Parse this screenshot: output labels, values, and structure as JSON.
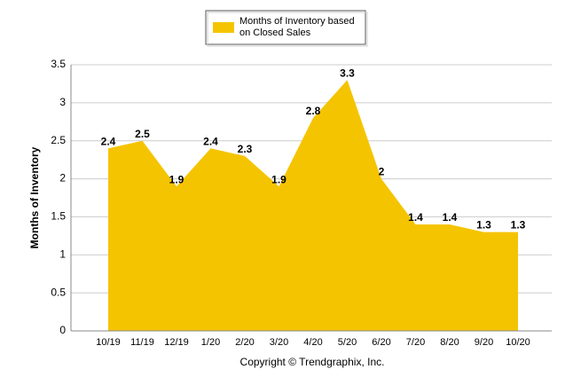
{
  "chart_data": {
    "type": "area",
    "categories": [
      "10/19",
      "11/19",
      "12/19",
      "1/20",
      "2/20",
      "3/20",
      "4/20",
      "5/20",
      "6/20",
      "7/20",
      "8/20",
      "9/20",
      "10/20"
    ],
    "series": [
      {
        "name": "Months of Inventory based on Closed Sales",
        "color": "#f5c400",
        "values": [
          2.4,
          2.5,
          1.9,
          2.4,
          2.3,
          1.9,
          2.8,
          3.3,
          2,
          1.4,
          1.4,
          1.3,
          1.3
        ]
      }
    ],
    "y_label": "Months of Inventory",
    "footer": "Copyright © Trendgraphix, Inc.",
    "ylim": [
      0,
      3.5
    ],
    "yticks": [
      0,
      0.5,
      1,
      1.5,
      2,
      2.5,
      3,
      3.5
    ],
    "grid": true,
    "legend": "top"
  }
}
